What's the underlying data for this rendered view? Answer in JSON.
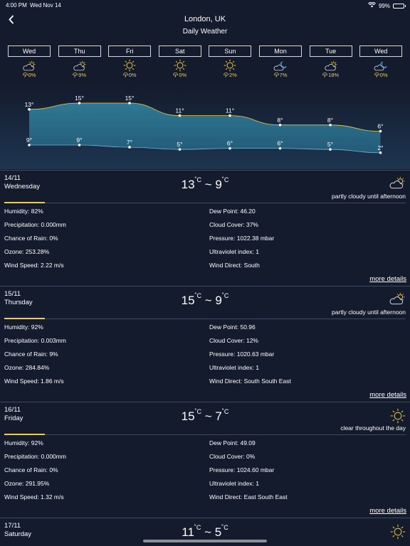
{
  "status": {
    "time": "4:00 PM",
    "date": "Wed Nov 14",
    "battery": "99%"
  },
  "header": {
    "city": "London, UK",
    "subtitle": "Daily Weather"
  },
  "days": [
    {
      "label": "Wed",
      "icon": "partly-cloudy-icon",
      "rain": "0%",
      "high": 13,
      "low": 9
    },
    {
      "label": "Thu",
      "icon": "partly-cloudy-icon",
      "rain": "9%",
      "high": 15,
      "low": 9
    },
    {
      "label": "Fri",
      "icon": "sun-icon",
      "rain": "0%",
      "high": 15,
      "low": 7
    },
    {
      "label": "Sat",
      "icon": "sun-icon",
      "rain": "0%",
      "high": 11,
      "low": 5
    },
    {
      "label": "Sun",
      "icon": "sun-icon",
      "rain": "2%",
      "high": 11,
      "low": 6
    },
    {
      "label": "Mon",
      "icon": "night-cloudy-icon",
      "rain": "7%",
      "high": 8,
      "low": 6
    },
    {
      "label": "Tue",
      "icon": "partly-cloudy-icon",
      "rain": "18%",
      "high": 8,
      "low": 5
    },
    {
      "label": "Wed",
      "icon": "night-cloudy-icon",
      "rain": "0%",
      "high": 6,
      "low": 2
    }
  ],
  "details": [
    {
      "date": "14/11",
      "weekday": "Wednesday",
      "high": "13",
      "low": "9",
      "icon": "partly-cloudy-icon",
      "summary": "partly cloudy until afternoon",
      "left": [
        "Humidity: 82%",
        "Precipitation: 0.000mm",
        "Chance of Rain: 0%",
        "Ozone: 253.28%",
        "Wind Speed: 2.22 m/s"
      ],
      "right": [
        "Dew Point: 46.20",
        "Cloud Cover: 37%",
        "Pressure: 1022.38 mbar",
        "Ultraviolet index: 1",
        "Wind Direct: South"
      ],
      "more": "more details"
    },
    {
      "date": "15/11",
      "weekday": "Thursday",
      "high": "15",
      "low": "9",
      "icon": "partly-cloudy-icon",
      "summary": "partly cloudy until afternoon",
      "left": [
        "Humidity: 92%",
        "Precipitation: 0.003mm",
        "Chance of Rain: 9%",
        "Ozone: 284.84%",
        "Wind Speed: 1.86 m/s"
      ],
      "right": [
        "Dew Point: 50.96",
        "Cloud Cover: 12%",
        "Pressure: 1020.63 mbar",
        "Ultraviolet index: 1",
        "Wind Direct: South South East"
      ],
      "more": "more details"
    },
    {
      "date": "16/11",
      "weekday": "Friday",
      "high": "15",
      "low": "7",
      "icon": "sun-icon",
      "summary": "clear throughout the day",
      "left": [
        "Humidity: 92%",
        "Precipitation: 0.000mm",
        "Chance of Rain: 0%",
        "Ozone: 291.95%",
        "Wind Speed: 1.32 m/s"
      ],
      "right": [
        "Dew Point: 49.09",
        "Cloud Cover: 0%",
        "Pressure: 1024.60 mbar",
        "Ultraviolet index: 1",
        "Wind Direct: East South East"
      ],
      "more": "more details"
    },
    {
      "date": "17/11",
      "weekday": "Saturday",
      "high": "11",
      "low": "5",
      "icon": "sun-icon",
      "summary": "",
      "left": [],
      "right": [],
      "more": ""
    }
  ],
  "colors": {
    "background": "#141b2d",
    "accent": "#f2cc43",
    "chart_fill": "#2e6f8c",
    "night_icon": "#4fa8d8"
  }
}
